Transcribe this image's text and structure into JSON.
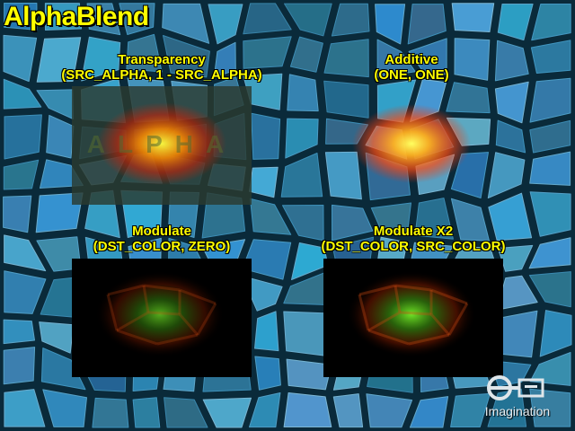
{
  "title": "AlphaBlend",
  "panels": [
    {
      "name": "Transparency",
      "mode": "(SRC_ALPHA, 1 - SRC_ALPHA)",
      "overlay_text": "ALPHA"
    },
    {
      "name": "Additive",
      "mode": "(ONE, ONE)"
    },
    {
      "name": "Modulate",
      "mode": "(DST_COLOR, ZERO)"
    },
    {
      "name": "Modulate X2",
      "mode": "(DST_COLOR, SRC_COLOR)"
    }
  ],
  "logo": {
    "text": "Imagination",
    "icon": "imagination-logo-icon"
  },
  "colors": {
    "caption": "#ffff00",
    "background_cells": "#1f6f93",
    "background_grout": "#0a2a3a",
    "glow_core": "#7cff2a",
    "glow_mid": "#ff8a00",
    "glow_outer": "#d81e00"
  }
}
